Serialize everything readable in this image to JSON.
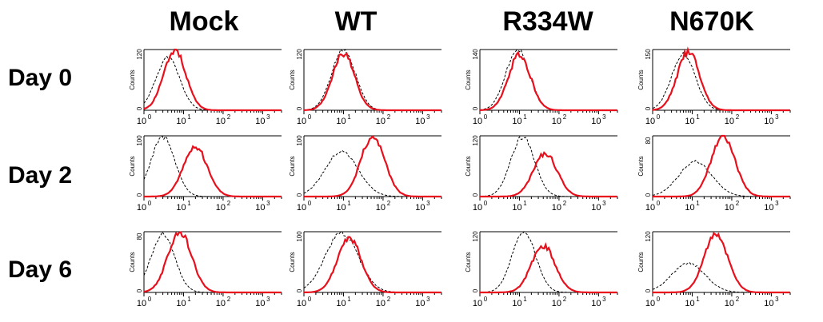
{
  "columns": [
    "Mock",
    "WT",
    "R334W",
    "N670K"
  ],
  "rows": [
    "Day 0",
    "Day 2",
    "Day 6"
  ],
  "colors": {
    "sample": "#e8101c",
    "control": "#000000"
  },
  "chart_data": {
    "type": "line",
    "layout": "small-multiples (rows = days, columns = constructs)",
    "axis": {
      "x_scale": "log",
      "xlim": [
        1,
        3000
      ],
      "x_ticks": [
        1,
        10,
        100,
        1000
      ],
      "x_tick_labels": [
        [
          "10",
          "0"
        ],
        [
          "10",
          "1"
        ],
        [
          "10",
          "2"
        ],
        [
          "10",
          "3"
        ]
      ],
      "ylabel": "Counts"
    },
    "series_style": {
      "sample": "solid red",
      "control": "dashed black"
    },
    "panels": [
      {
        "row": "Day 0",
        "column": "Mock",
        "ymax": 120,
        "y_ticks": [
          "0",
          "120"
        ],
        "sample_peak": [
          6,
          120
        ],
        "control_peak": [
          4,
          104
        ]
      },
      {
        "row": "Day 0",
        "column": "WT",
        "ymax": 120,
        "y_ticks": [
          "0",
          "120"
        ],
        "sample_peak": [
          10,
          112
        ],
        "control_peak": [
          10,
          120
        ]
      },
      {
        "row": "Day 0",
        "column": "R334W",
        "ymax": 140,
        "y_ticks": [
          "0",
          "140"
        ],
        "sample_peak": [
          10,
          128
        ],
        "control_peak": [
          9,
          140
        ]
      },
      {
        "row": "Day 0",
        "column": "N670K",
        "ymax": 150,
        "y_ticks": [
          "0",
          "150"
        ],
        "sample_peak": [
          8,
          145
        ],
        "control_peak": [
          6,
          138
        ]
      },
      {
        "row": "Day 2",
        "column": "Mock",
        "ymax": 100,
        "y_ticks": [
          "0",
          "100"
        ],
        "sample_peak": [
          20,
          82
        ],
        "control_peak": [
          3,
          98
        ]
      },
      {
        "row": "Day 2",
        "column": "WT",
        "ymax": 100,
        "y_ticks": [
          "0",
          "100"
        ],
        "sample_peak": [
          55,
          100
        ],
        "control_peak": [
          9,
          74
        ]
      },
      {
        "row": "Day 2",
        "column": "R334W",
        "ymax": 120,
        "y_ticks": [
          "0",
          "120"
        ],
        "sample_peak": [
          45,
          85
        ],
        "control_peak": [
          12,
          118
        ]
      },
      {
        "row": "Day 2",
        "column": "N670K",
        "ymax": 80,
        "y_ticks": [
          "0",
          "80"
        ],
        "sample_peak": [
          60,
          80
        ],
        "control_peak": [
          12,
          46
        ]
      },
      {
        "row": "Day 6",
        "column": "Mock",
        "ymax": 80,
        "y_ticks": [
          "0",
          "80"
        ],
        "sample_peak": [
          8,
          80
        ],
        "control_peak": [
          3,
          77
        ]
      },
      {
        "row": "Day 6",
        "column": "WT",
        "ymax": 100,
        "y_ticks": [
          "0",
          "100"
        ],
        "sample_peak": [
          14,
          90
        ],
        "control_peak": [
          9,
          98
        ]
      },
      {
        "row": "Day 6",
        "column": "R334W",
        "ymax": 120,
        "y_ticks": [
          "0",
          "120"
        ],
        "sample_peak": [
          40,
          92
        ],
        "control_peak": [
          13,
          120
        ]
      },
      {
        "row": "Day 6",
        "column": "N670K",
        "ymax": 120,
        "y_ticks": [
          "0",
          "120"
        ],
        "sample_peak": [
          40,
          116
        ],
        "control_peak": [
          8,
          58
        ]
      }
    ]
  }
}
